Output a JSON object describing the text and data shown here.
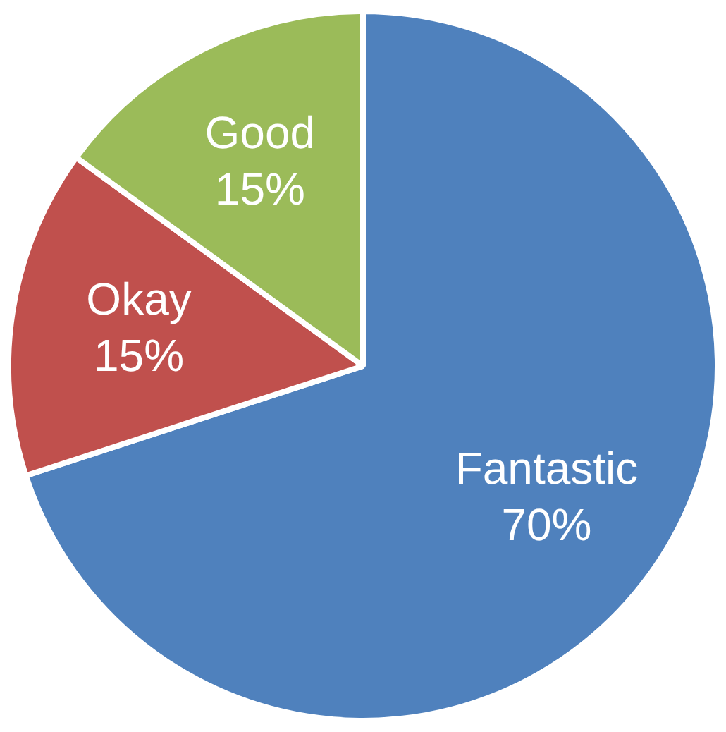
{
  "chart_data": {
    "type": "pie",
    "categories": [
      "Fantastic",
      "Okay",
      "Good"
    ],
    "values": [
      70,
      15,
      15
    ],
    "colors": [
      "#4f81bd",
      "#c0504d",
      "#9bbb59"
    ],
    "value_labels": [
      "70%",
      "15%",
      "15%"
    ],
    "legend": false
  }
}
